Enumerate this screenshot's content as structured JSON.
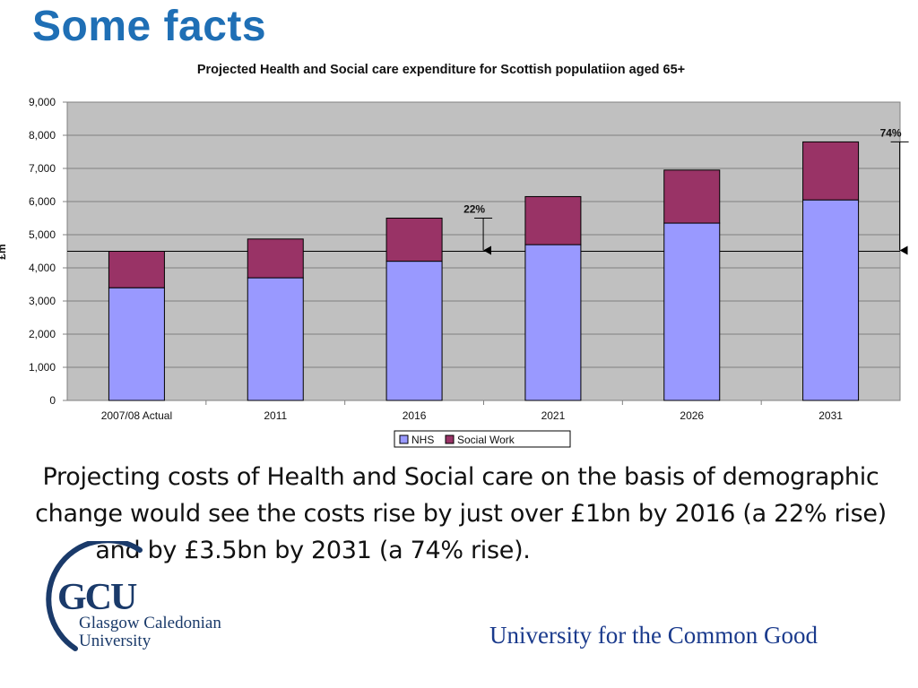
{
  "page_title": "Some facts",
  "body_text": {
    "line1": "Projecting costs of Health and Social care on the basis of demographic",
    "line2": "change would see the costs rise by just over £1bn by 2016 (a 22% rise)",
    "line3": "and by £3.5bn by 2031 (a 74% rise)."
  },
  "logo": {
    "mark": "GCU",
    "name_line1": "Glasgow Caledonian",
    "name_line2": "University",
    "color": "#1a3a6a"
  },
  "tagline": "University for the Common Good",
  "chart_data": {
    "type": "bar",
    "stacked": true,
    "title": "Projected Health and Social care expenditure for Scottish populatiion aged 65+",
    "ylabel": "£m",
    "xlabel": "",
    "ylim": [
      0,
      9000
    ],
    "yticks": [
      "0",
      "1,000",
      "2,000",
      "3,000",
      "4,000",
      "5,000",
      "6,000",
      "7,000",
      "8,000",
      "9,000"
    ],
    "categories": [
      "2007/08 Actual",
      "2011",
      "2016",
      "2021",
      "2026",
      "2031"
    ],
    "series": [
      {
        "name": "NHS",
        "color": "#9999ff",
        "values": [
          3400,
          3700,
          4200,
          4700,
          5350,
          6050
        ]
      },
      {
        "name": "Social Work",
        "color": "#993366",
        "values": [
          1100,
          1170,
          1300,
          1450,
          1600,
          1750
        ]
      }
    ],
    "baseline_value": 4500,
    "annotations": [
      {
        "label": "22%",
        "category": "2016",
        "from": 5500,
        "to": 4500
      },
      {
        "label": "74%",
        "category": "2031",
        "from": 7800,
        "to": 4500
      }
    ],
    "grid": true,
    "plot_background": "#c0c0c0",
    "legend_position": "bottom"
  }
}
